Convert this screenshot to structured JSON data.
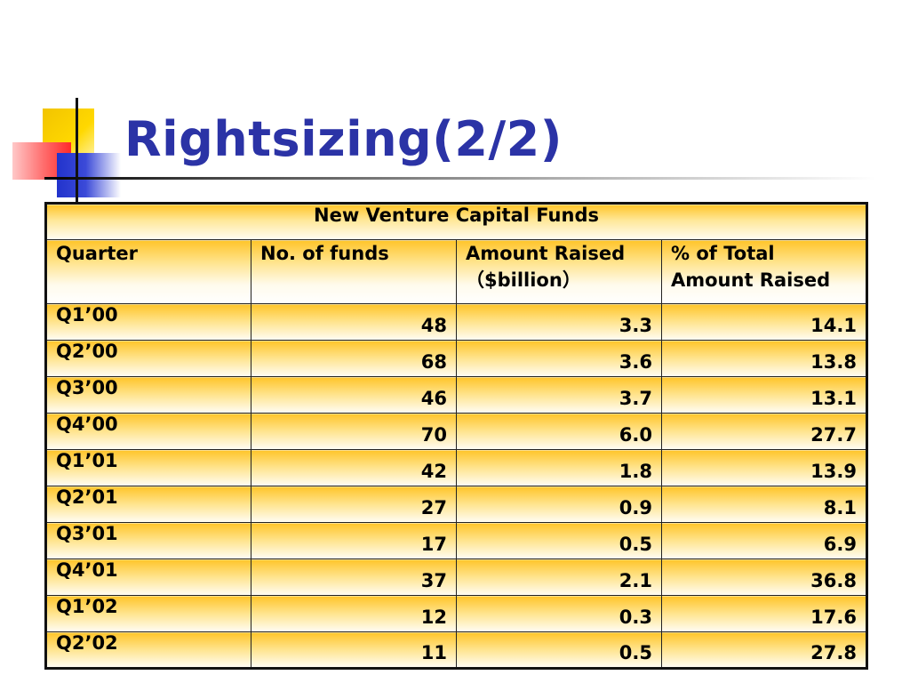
{
  "slide": {
    "title": "Rightsizing(2/2)"
  },
  "table": {
    "caption": "New Venture Capital Funds",
    "headers": [
      {
        "line1": "Quarter",
        "line2": ""
      },
      {
        "line1": "No. of funds",
        "line2": ""
      },
      {
        "line1": "Amount Raised",
        "line2": "（$billion）"
      },
      {
        "line1": "% of Total",
        "line2": "Amount Raised"
      }
    ],
    "rows": [
      {
        "quarter": "Q1’00",
        "funds": "48",
        "amount": "3.3",
        "pct": "14.1"
      },
      {
        "quarter": "Q2’00",
        "funds": "68",
        "amount": "3.6",
        "pct": "13.8"
      },
      {
        "quarter": "Q3’00",
        "funds": "46",
        "amount": "3.7",
        "pct": "13.1"
      },
      {
        "quarter": "Q4’00",
        "funds": "70",
        "amount": "6.0",
        "pct": "27.7"
      },
      {
        "quarter": "Q1’01",
        "funds": "42",
        "amount": "1.8",
        "pct": "13.9"
      },
      {
        "quarter": "Q2’01",
        "funds": "27",
        "amount": "0.9",
        "pct": "8.1"
      },
      {
        "quarter": "Q3’01",
        "funds": "17",
        "amount": "0.5",
        "pct": "6.9"
      },
      {
        "quarter": "Q4’01",
        "funds": "37",
        "amount": "2.1",
        "pct": "36.8"
      },
      {
        "quarter": "Q1’02",
        "funds": "12",
        "amount": "0.3",
        "pct": "17.6"
      },
      {
        "quarter": "Q2’02",
        "funds": "11",
        "amount": "0.5",
        "pct": "27.8"
      }
    ]
  },
  "colors": {
    "title": "#2b33a6",
    "cell_gold": "#ffc52a",
    "cell_light": "#fffdf3",
    "logo_yellow": "#ffd800",
    "logo_red": "#ff2a2a",
    "logo_blue": "#2233cc"
  }
}
